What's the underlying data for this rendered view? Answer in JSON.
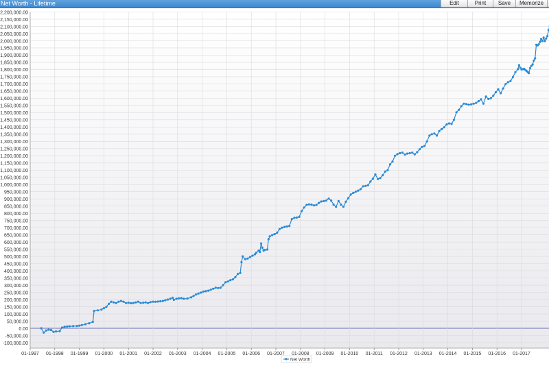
{
  "window": {
    "title": "Net Worth - Lifetime"
  },
  "toolbar": {
    "edit": "Edit",
    "print": "Print",
    "save": "Save",
    "memorize": "Memorize",
    "overflow": "C"
  },
  "colors": {
    "series": "#2a8ad4",
    "title_bar": "#4a90d9"
  },
  "chart_data": {
    "type": "line",
    "title": "",
    "xlabel": "",
    "ylabel": "",
    "grid": true,
    "legend": "bottom-center",
    "ylim": [
      -100000,
      2200000
    ],
    "xlim": [
      1997.0,
      2017.5
    ],
    "y_ticks": [
      -100000,
      -50000,
      0,
      50000,
      100000,
      150000,
      200000,
      250000,
      300000,
      350000,
      400000,
      450000,
      500000,
      550000,
      600000,
      650000,
      700000,
      750000,
      800000,
      850000,
      900000,
      950000,
      1000000,
      1050000,
      1100000,
      1150000,
      1200000,
      1250000,
      1300000,
      1350000,
      1400000,
      1450000,
      1500000,
      1550000,
      1600000,
      1650000,
      1700000,
      1750000,
      1800000,
      1850000,
      1900000,
      1950000,
      2000000,
      2050000,
      2100000,
      2150000,
      2200000
    ],
    "y_tick_labels": [
      "-100,000.00",
      "-50,000.00",
      "0.00",
      "50,000.00",
      "100,000.00",
      "150,000.00",
      "200,000.00",
      "250,000.00",
      "300,000.00",
      "350,000.00",
      "400,000.00",
      "450,000.00",
      "500,000.00",
      "550,000.00",
      "600,000.00",
      "650,000.00",
      "700,000.00",
      "750,000.00",
      "800,000.00",
      "850,000.00",
      "900,000.00",
      "950,000.00",
      "1,000,000.00",
      "1,050,000.00",
      "1,100,000.00",
      "1,150,000.00",
      "1,200,000.00",
      "1,250,000.00",
      "1,300,000.00",
      "1,350,000.00",
      "1,400,000.00",
      "1,450,000.00",
      "1,500,000.00",
      "1,550,000.00",
      "1,600,000.00",
      "1,650,000.00",
      "1,700,000.00",
      "1,750,000.00",
      "1,800,000.00",
      "1,850,000.00",
      "1,900,000.00",
      "1,950,000.00",
      "2,000,000.00",
      "2,050,000.00",
      "2,100,000.00",
      "2,150,000.00",
      "2,200,000.00"
    ],
    "x_ticks": [
      1997,
      1998,
      1999,
      2000,
      2001,
      2002,
      2003,
      2004,
      2005,
      2006,
      2007,
      2008,
      2009,
      2010,
      2011,
      2012,
      2013,
      2014,
      2015,
      2016,
      2017
    ],
    "x_tick_labels": [
      "01-1997",
      "01-1998",
      "01-1999",
      "01-2000",
      "01-2001",
      "01-2002",
      "01-2003",
      "01-2004",
      "01-2005",
      "01-2006",
      "01-2007",
      "01-2008",
      "01-2009",
      "01-2010",
      "01-2011",
      "01-2012",
      "01-2013",
      "01-2014",
      "01-2015",
      "01-2016",
      "01-2017"
    ],
    "series": [
      {
        "name": "Net Worth",
        "points": [
          [
            1997.45,
            0
          ],
          [
            1997.55,
            -30000
          ],
          [
            1997.65,
            -15000
          ],
          [
            1997.75,
            -10000
          ],
          [
            1997.85,
            -12000
          ],
          [
            1997.95,
            -25000
          ],
          [
            1998.05,
            -22000
          ],
          [
            1998.2,
            -20000
          ],
          [
            1998.3,
            5000
          ],
          [
            1998.4,
            10000
          ],
          [
            1998.5,
            12000
          ],
          [
            1998.6,
            14000
          ],
          [
            1998.75,
            15000
          ],
          [
            1998.9,
            16000
          ],
          [
            1999.0,
            18000
          ],
          [
            1999.1,
            22000
          ],
          [
            1999.25,
            28000
          ],
          [
            1999.4,
            35000
          ],
          [
            1999.55,
            45000
          ],
          [
            1999.6,
            120000
          ],
          [
            1999.75,
            125000
          ],
          [
            1999.9,
            130000
          ],
          [
            2000.0,
            140000
          ],
          [
            2000.1,
            150000
          ],
          [
            2000.2,
            170000
          ],
          [
            2000.3,
            185000
          ],
          [
            2000.4,
            180000
          ],
          [
            2000.5,
            175000
          ],
          [
            2000.6,
            185000
          ],
          [
            2000.7,
            190000
          ],
          [
            2000.8,
            185000
          ],
          [
            2000.9,
            175000
          ],
          [
            2001.0,
            178000
          ],
          [
            2001.1,
            174000
          ],
          [
            2001.2,
            176000
          ],
          [
            2001.3,
            180000
          ],
          [
            2001.4,
            185000
          ],
          [
            2001.5,
            175000
          ],
          [
            2001.6,
            178000
          ],
          [
            2001.7,
            180000
          ],
          [
            2001.8,
            175000
          ],
          [
            2001.9,
            182000
          ],
          [
            2002.0,
            185000
          ],
          [
            2002.1,
            184000
          ],
          [
            2002.2,
            186000
          ],
          [
            2002.3,
            188000
          ],
          [
            2002.4,
            190000
          ],
          [
            2002.5,
            195000
          ],
          [
            2002.6,
            200000
          ],
          [
            2002.7,
            205000
          ],
          [
            2002.8,
            212000
          ],
          [
            2002.85,
            198000
          ],
          [
            2002.95,
            205000
          ],
          [
            2003.05,
            208000
          ],
          [
            2003.15,
            210000
          ],
          [
            2003.25,
            205000
          ],
          [
            2003.4,
            207000
          ],
          [
            2003.55,
            215000
          ],
          [
            2003.65,
            225000
          ],
          [
            2003.75,
            235000
          ],
          [
            2003.85,
            242000
          ],
          [
            2003.95,
            248000
          ],
          [
            2004.05,
            255000
          ],
          [
            2004.15,
            258000
          ],
          [
            2004.25,
            262000
          ],
          [
            2004.35,
            268000
          ],
          [
            2004.45,
            275000
          ],
          [
            2004.55,
            282000
          ],
          [
            2004.65,
            280000
          ],
          [
            2004.75,
            282000
          ],
          [
            2004.85,
            300000
          ],
          [
            2004.95,
            320000
          ],
          [
            2005.05,
            325000
          ],
          [
            2005.15,
            335000
          ],
          [
            2005.25,
            340000
          ],
          [
            2005.35,
            355000
          ],
          [
            2005.45,
            378000
          ],
          [
            2005.55,
            385000
          ],
          [
            2005.6,
            460000
          ],
          [
            2005.65,
            500000
          ],
          [
            2005.75,
            480000
          ],
          [
            2005.85,
            485000
          ],
          [
            2005.95,
            495000
          ],
          [
            2006.05,
            505000
          ],
          [
            2006.15,
            515000
          ],
          [
            2006.2,
            525000
          ],
          [
            2006.3,
            540000
          ],
          [
            2006.35,
            530000
          ],
          [
            2006.4,
            590000
          ],
          [
            2006.45,
            560000
          ],
          [
            2006.5,
            540000
          ],
          [
            2006.55,
            545000
          ],
          [
            2006.65,
            548000
          ],
          [
            2006.7,
            620000
          ],
          [
            2006.75,
            640000
          ],
          [
            2006.85,
            648000
          ],
          [
            2006.95,
            655000
          ],
          [
            2007.05,
            665000
          ],
          [
            2007.15,
            690000
          ],
          [
            2007.25,
            700000
          ],
          [
            2007.35,
            705000
          ],
          [
            2007.45,
            708000
          ],
          [
            2007.55,
            712000
          ],
          [
            2007.65,
            760000
          ],
          [
            2007.75,
            768000
          ],
          [
            2007.85,
            770000
          ],
          [
            2007.95,
            775000
          ],
          [
            2008.05,
            815000
          ],
          [
            2008.15,
            840000
          ],
          [
            2008.25,
            858000
          ],
          [
            2008.35,
            862000
          ],
          [
            2008.45,
            860000
          ],
          [
            2008.55,
            855000
          ],
          [
            2008.65,
            858000
          ],
          [
            2008.75,
            872000
          ],
          [
            2008.85,
            882000
          ],
          [
            2008.95,
            885000
          ],
          [
            2009.05,
            888000
          ],
          [
            2009.15,
            902000
          ],
          [
            2009.25,
            888000
          ],
          [
            2009.35,
            860000
          ],
          [
            2009.45,
            845000
          ],
          [
            2009.55,
            885000
          ],
          [
            2009.65,
            860000
          ],
          [
            2009.75,
            845000
          ],
          [
            2009.85,
            880000
          ],
          [
            2009.95,
            905000
          ],
          [
            2010.05,
            930000
          ],
          [
            2010.15,
            942000
          ],
          [
            2010.25,
            950000
          ],
          [
            2010.35,
            958000
          ],
          [
            2010.45,
            968000
          ],
          [
            2010.55,
            988000
          ],
          [
            2010.65,
            990000
          ],
          [
            2010.75,
            995000
          ],
          [
            2010.85,
            1020000
          ],
          [
            2010.95,
            1040000
          ],
          [
            2011.05,
            1070000
          ],
          [
            2011.15,
            1038000
          ],
          [
            2011.25,
            1045000
          ],
          [
            2011.35,
            1065000
          ],
          [
            2011.45,
            1090000
          ],
          [
            2011.55,
            1100000
          ],
          [
            2011.65,
            1140000
          ],
          [
            2011.75,
            1160000
          ],
          [
            2011.85,
            1200000
          ],
          [
            2011.95,
            1212000
          ],
          [
            2012.05,
            1218000
          ],
          [
            2012.15,
            1222000
          ],
          [
            2012.25,
            1208000
          ],
          [
            2012.35,
            1215000
          ],
          [
            2012.45,
            1218000
          ],
          [
            2012.55,
            1222000
          ],
          [
            2012.65,
            1210000
          ],
          [
            2012.75,
            1225000
          ],
          [
            2012.85,
            1245000
          ],
          [
            2012.95,
            1262000
          ],
          [
            2013.05,
            1268000
          ],
          [
            2013.15,
            1300000
          ],
          [
            2013.25,
            1340000
          ],
          [
            2013.35,
            1350000
          ],
          [
            2013.45,
            1355000
          ],
          [
            2013.55,
            1340000
          ],
          [
            2013.65,
            1372000
          ],
          [
            2013.75,
            1385000
          ],
          [
            2013.85,
            1398000
          ],
          [
            2013.95,
            1418000
          ],
          [
            2014.05,
            1425000
          ],
          [
            2014.15,
            1422000
          ],
          [
            2014.25,
            1450000
          ],
          [
            2014.35,
            1502000
          ],
          [
            2014.45,
            1520000
          ],
          [
            2014.55,
            1545000
          ],
          [
            2014.65,
            1562000
          ],
          [
            2014.75,
            1560000
          ],
          [
            2014.85,
            1555000
          ],
          [
            2014.95,
            1558000
          ],
          [
            2015.05,
            1562000
          ],
          [
            2015.15,
            1568000
          ],
          [
            2015.25,
            1580000
          ],
          [
            2015.35,
            1592000
          ],
          [
            2015.45,
            1562000
          ],
          [
            2015.55,
            1612000
          ],
          [
            2015.65,
            1595000
          ],
          [
            2015.75,
            1600000
          ],
          [
            2015.85,
            1618000
          ],
          [
            2015.95,
            1642000
          ],
          [
            2016.05,
            1662000
          ],
          [
            2016.15,
            1635000
          ],
          [
            2016.25,
            1668000
          ],
          [
            2016.35,
            1698000
          ],
          [
            2016.45,
            1712000
          ],
          [
            2016.55,
            1720000
          ],
          [
            2016.65,
            1748000
          ],
          [
            2016.75,
            1782000
          ],
          [
            2016.85,
            1802000
          ],
          [
            2016.9,
            1830000
          ],
          [
            2016.95,
            1812000
          ],
          [
            2017.0,
            1800000
          ],
          [
            2017.05,
            1802000
          ],
          [
            2017.1,
            1805000
          ],
          [
            2017.15,
            1798000
          ],
          [
            2017.2,
            1790000
          ],
          [
            2017.25,
            1782000
          ],
          [
            2017.3,
            1775000
          ],
          [
            2017.35,
            1810000
          ],
          [
            2017.4,
            1825000
          ],
          [
            2017.45,
            1835000
          ],
          [
            2017.5,
            1862000
          ],
          [
            2017.55,
            1878000
          ],
          [
            2017.6,
            1972000
          ],
          [
            2017.65,
            1968000
          ],
          [
            2017.7,
            1975000
          ],
          [
            2017.75,
            1992000
          ],
          [
            2017.8,
            2012000
          ],
          [
            2017.85,
            1998000
          ],
          [
            2017.9,
            2022000
          ],
          [
            2017.95,
            1998000
          ],
          [
            2018.0,
            2015000
          ],
          [
            2018.05,
            2032000
          ],
          [
            2018.1,
            2075000
          ],
          [
            2018.15,
            2100000
          ],
          [
            2018.2,
            2130000
          ],
          [
            2018.25,
            2145000
          ],
          [
            2018.3,
            2148000
          ]
        ]
      }
    ]
  }
}
